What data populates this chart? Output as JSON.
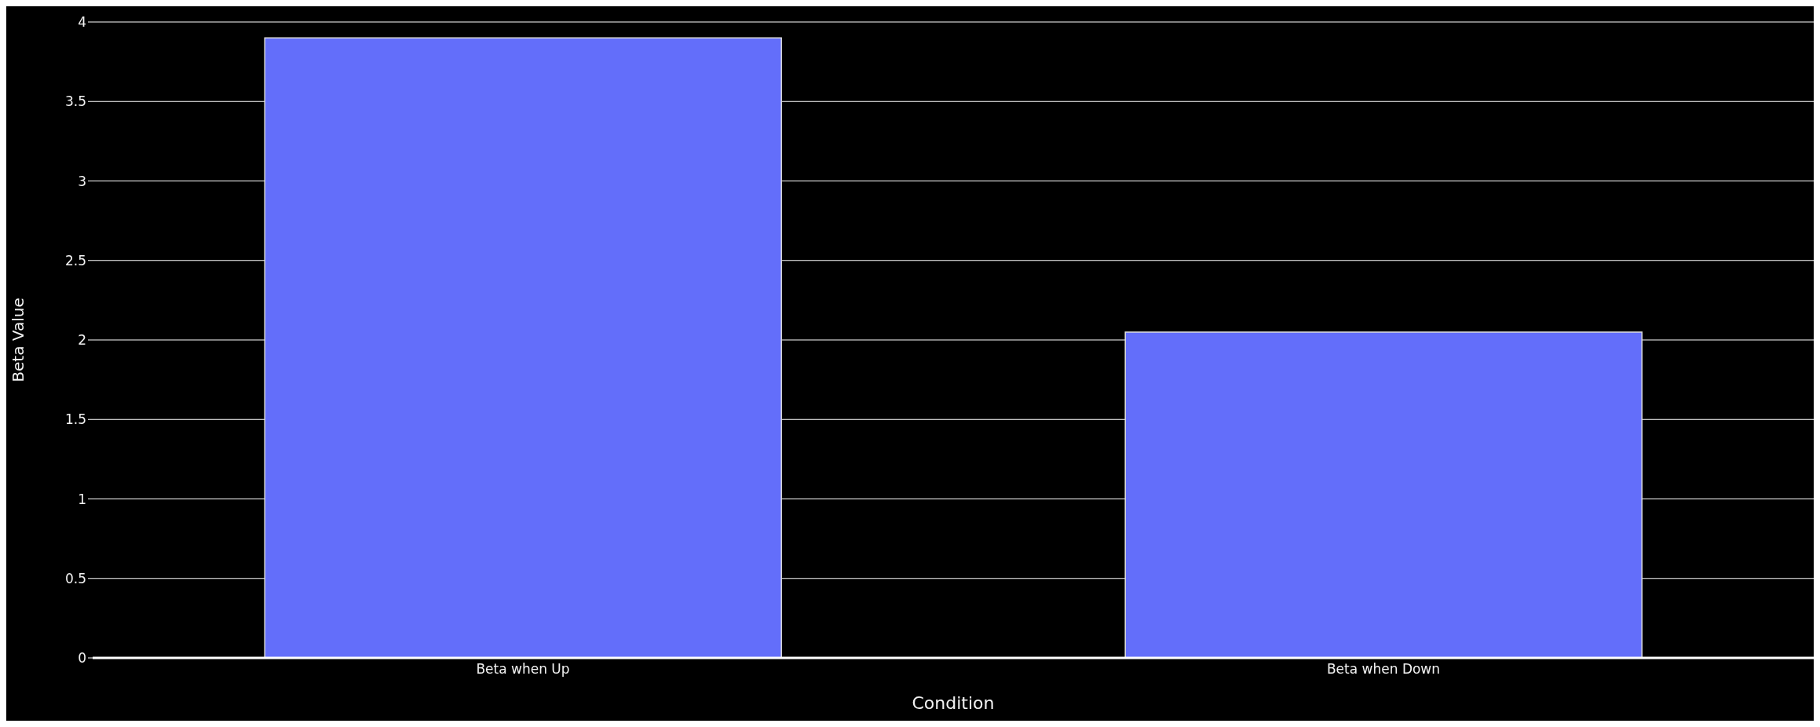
{
  "chart_data": {
    "type": "bar",
    "xlabel": "Condition",
    "ylabel": "Beta Value",
    "categories": [
      "Beta when Up",
      "Beta when Down"
    ],
    "values": [
      3.9,
      2.05
    ],
    "color": "#636efa",
    "ylim": [
      0,
      4
    ],
    "yticks": [
      0,
      0.5,
      1,
      1.5,
      2,
      2.5,
      3,
      3.5,
      4
    ],
    "grid": "y"
  }
}
